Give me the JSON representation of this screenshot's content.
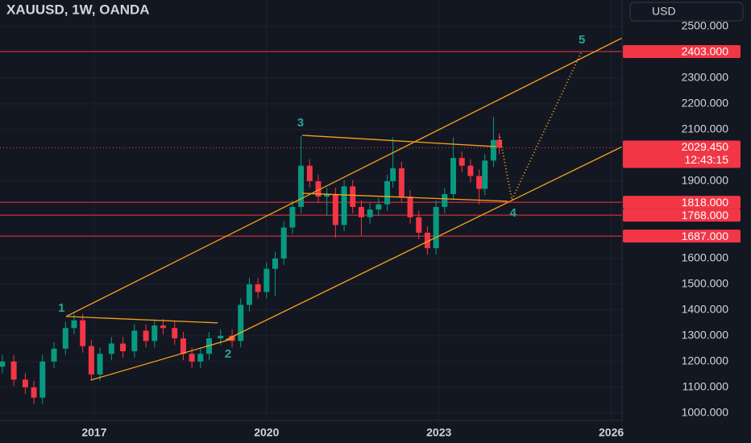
{
  "chart_data": {
    "type": "candlestick",
    "title": "XAUUSD, 1W, OANDA",
    "currency": "USD",
    "xlim": [
      2015.36,
      2026.16
    ],
    "xticks": [
      2017,
      2020,
      2023,
      2026
    ],
    "ylim": [
      884,
      2603
    ],
    "yticks": [
      {
        "value": 2500,
        "label": "2500.000"
      },
      {
        "value": 2300,
        "label": "2300.000"
      },
      {
        "value": 2200,
        "label": "2200.000"
      },
      {
        "value": 2100,
        "label": "2100.000"
      },
      {
        "value": 1900,
        "label": "1900.000"
      },
      {
        "value": 1600,
        "label": "1600.000"
      },
      {
        "value": 1500,
        "label": "1500.000"
      },
      {
        "value": 1400,
        "label": "1400.000"
      },
      {
        "value": 1300,
        "label": "1300.000"
      },
      {
        "value": 1200,
        "label": "1200.000"
      },
      {
        "value": 1100,
        "label": "1100.000"
      },
      {
        "value": 1000,
        "label": "1000.000"
      }
    ],
    "grid": true,
    "up_color": "#089981",
    "down_color": "#f23645",
    "x": [
      2015.4,
      2015.6,
      2015.8,
      2015.95,
      2016.1,
      2016.3,
      2016.5,
      2016.65,
      2016.8,
      2016.95,
      2017.1,
      2017.3,
      2017.5,
      2017.7,
      2017.9,
      2018.05,
      2018.2,
      2018.4,
      2018.55,
      2018.7,
      2018.85,
      2019.0,
      2019.2,
      2019.4,
      2019.55,
      2019.7,
      2019.85,
      2020.0,
      2020.15,
      2020.3,
      2020.45,
      2020.6,
      2020.75,
      2020.9,
      2021.05,
      2021.2,
      2021.35,
      2021.5,
      2021.65,
      2021.8,
      2021.95,
      2022.1,
      2022.2,
      2022.35,
      2022.5,
      2022.65,
      2022.8,
      2022.95,
      2023.1,
      2023.25,
      2023.4,
      2023.55,
      2023.7,
      2023.8,
      2023.95,
      2024.05
    ],
    "open": [
      1180,
      1200,
      1130,
      1100,
      1060,
      1200,
      1250,
      1330,
      1360,
      1260,
      1150,
      1230,
      1270,
      1240,
      1320,
      1280,
      1340,
      1330,
      1290,
      1230,
      1200,
      1230,
      1290,
      1300,
      1280,
      1420,
      1500,
      1470,
      1560,
      1600,
      1720,
      1800,
      1960,
      1900,
      1840,
      1850,
      1730,
      1880,
      1800,
      1760,
      1790,
      1810,
      1900,
      1950,
      1840,
      1760,
      1700,
      1640,
      1800,
      1850,
      1990,
      1960,
      1920,
      1870,
      1980,
      2060
    ],
    "high": [
      1225,
      1225,
      1155,
      1125,
      1225,
      1275,
      1355,
      1385,
      1385,
      1285,
      1255,
      1295,
      1295,
      1345,
      1345,
      1365,
      1365,
      1355,
      1315,
      1255,
      1255,
      1315,
      1325,
      1325,
      1445,
      1525,
      1525,
      1585,
      1625,
      1745,
      1825,
      2075,
      1985,
      1925,
      1875,
      1875,
      1905,
      1905,
      1825,
      1815,
      1835,
      1925,
      2070,
      1975,
      1865,
      1785,
      1725,
      1825,
      1875,
      2070,
      2015,
      1985,
      1945,
      2005,
      2150,
      2085
    ],
    "low": [
      1155,
      1105,
      1075,
      1035,
      1035,
      1175,
      1225,
      1305,
      1235,
      1125,
      1125,
      1205,
      1215,
      1215,
      1255,
      1255,
      1305,
      1265,
      1205,
      1175,
      1175,
      1205,
      1265,
      1255,
      1255,
      1395,
      1445,
      1445,
      1455,
      1575,
      1695,
      1775,
      1875,
      1815,
      1765,
      1680,
      1705,
      1775,
      1690,
      1735,
      1765,
      1785,
      1875,
      1815,
      1735,
      1675,
      1615,
      1615,
      1775,
      1825,
      1935,
      1895,
      1810,
      1845,
      1955,
      2005
    ],
    "close": [
      1200,
      1130,
      1100,
      1060,
      1200,
      1250,
      1330,
      1360,
      1260,
      1150,
      1230,
      1270,
      1240,
      1320,
      1280,
      1340,
      1330,
      1290,
      1230,
      1200,
      1230,
      1290,
      1300,
      1280,
      1420,
      1500,
      1470,
      1560,
      1600,
      1720,
      1800,
      1960,
      1900,
      1840,
      1850,
      1730,
      1880,
      1800,
      1760,
      1790,
      1810,
      1900,
      1950,
      1840,
      1760,
      1700,
      1640,
      1800,
      1850,
      1990,
      1960,
      1920,
      1870,
      1980,
      2060,
      2030
    ],
    "levels": [
      {
        "value": 2403,
        "label": "2403.000"
      },
      {
        "value": 1818,
        "label": "1818.000"
      },
      {
        "value": 1768,
        "label": "1768.000"
      },
      {
        "value": 1687,
        "label": "1687.000"
      }
    ],
    "last_price": {
      "value": 2029.45,
      "label": "2029.450",
      "countdown": "12:43:15"
    },
    "trendlines": [
      {
        "x": [
          2016.51,
          2026.19
        ],
        "y": [
          1375,
          2456
        ]
      },
      {
        "x": [
          2019.29,
          2026.19
        ],
        "y": [
          1284,
          2034
        ]
      },
      {
        "x": [
          2016.51,
          2019.15
        ],
        "y": [
          1375,
          1350
        ]
      },
      {
        "x": [
          2016.94,
          2019.43
        ],
        "y": [
          1128,
          1290
        ]
      },
      {
        "x": [
          2020.62,
          2023.99
        ],
        "y": [
          2078,
          2034
        ]
      },
      {
        "x": [
          2020.62,
          2024.2
        ],
        "y": [
          1853,
          1822
        ]
      }
    ],
    "projection": {
      "x": [
        2024.06,
        2024.27,
        2025.49
      ],
      "y": [
        2072,
        1828,
        2406
      ]
    },
    "waves": [
      {
        "label": "1",
        "x": 2016.43,
        "y": 1406
      },
      {
        "label": "2",
        "x": 2019.33,
        "y": 1228
      },
      {
        "label": "3",
        "x": 2020.59,
        "y": 2125
      },
      {
        "label": "4",
        "x": 2024.29,
        "y": 1775
      },
      {
        "label": "5",
        "x": 2025.49,
        "y": 2447
      }
    ]
  }
}
